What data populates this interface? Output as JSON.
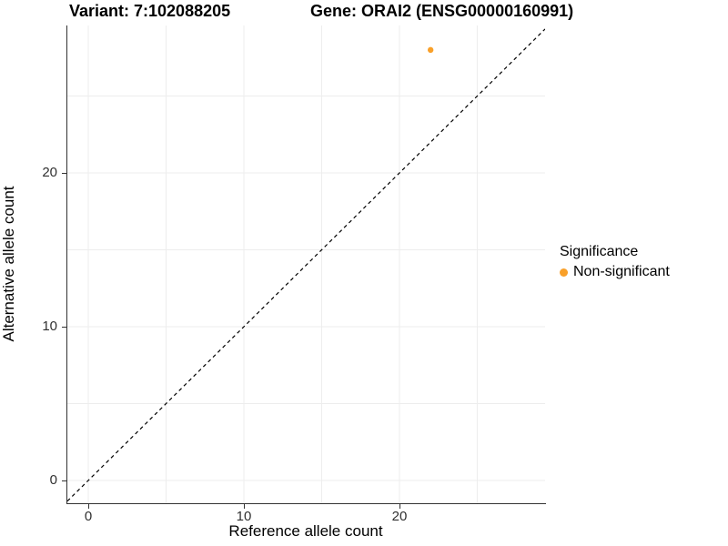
{
  "titles": {
    "variant": "Variant: 7:102088205",
    "gene": "Gene: ORAI2 (ENSG00000160991)"
  },
  "axes": {
    "x": {
      "label": "Reference allele count",
      "ticks": [
        "0",
        "10",
        "20"
      ]
    },
    "y": {
      "label": "Alternative allele count",
      "ticks": [
        "0",
        "10",
        "20"
      ]
    }
  },
  "legend": {
    "title": "Significance",
    "items": [
      {
        "label": "Non-significant",
        "color": "#F9A029"
      }
    ]
  },
  "colors": {
    "axis_line": "#333333",
    "gridline": "#EDEDED",
    "reference_line": "#000000",
    "point": "#F9A029"
  },
  "chart_data": {
    "type": "scatter",
    "title": "Variant: 7:102088205 — Gene: ORAI2 (ENSG00000160991)",
    "xlabel": "Reference allele count",
    "ylabel": "Alternative allele count",
    "xlim": [
      -1.345,
      29.36
    ],
    "ylim": [
      -1.48,
      29.59
    ],
    "x_ticks": [
      0,
      10,
      20
    ],
    "y_ticks": [
      0,
      10,
      20
    ],
    "gridline_values": [
      0,
      5,
      10,
      15,
      20,
      25
    ],
    "grid": true,
    "legend_position": "right",
    "series": [
      {
        "name": "Non-significant",
        "color": "#F9A029",
        "points": [
          {
            "x": 22,
            "y": 28
          }
        ]
      }
    ],
    "reference_line": {
      "type": "identity y=x",
      "style": "dashed",
      "color": "#000000"
    }
  }
}
